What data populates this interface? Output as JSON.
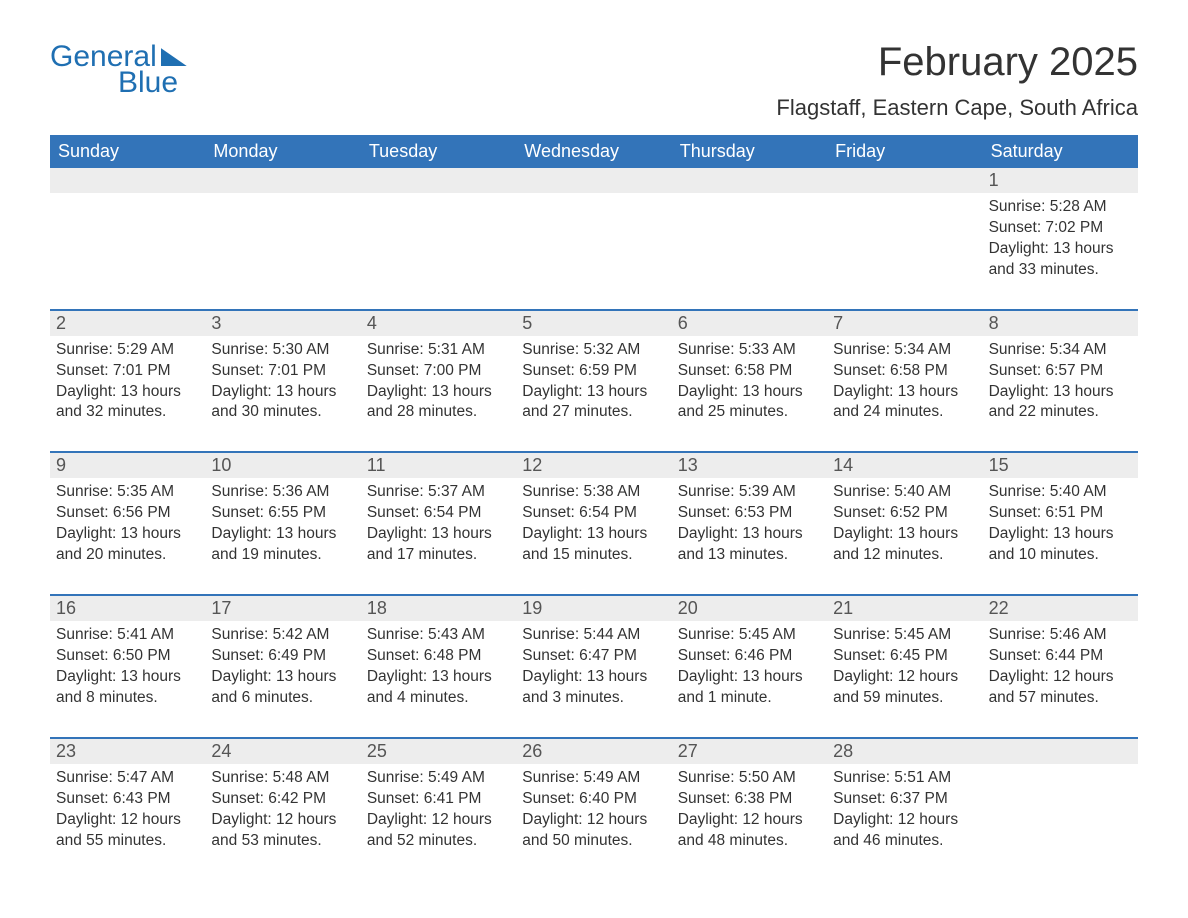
{
  "brand": {
    "word1": "General",
    "word2": "Blue"
  },
  "title": "February 2025",
  "location": "Flagstaff, Eastern Cape, South Africa",
  "colors": {
    "accent": "#3374b9",
    "logo": "#1f6fb2",
    "daynum_bg": "#ededed",
    "text": "#333333",
    "bg": "#ffffff"
  },
  "weekdays": [
    "Sunday",
    "Monday",
    "Tuesday",
    "Wednesday",
    "Thursday",
    "Friday",
    "Saturday"
  ],
  "weeks": [
    [
      null,
      null,
      null,
      null,
      null,
      null,
      {
        "n": "1",
        "sunrise": "Sunrise: 5:28 AM",
        "sunset": "Sunset: 7:02 PM",
        "day1": "Daylight: 13 hours",
        "day2": "and 33 minutes."
      }
    ],
    [
      {
        "n": "2",
        "sunrise": "Sunrise: 5:29 AM",
        "sunset": "Sunset: 7:01 PM",
        "day1": "Daylight: 13 hours",
        "day2": "and 32 minutes."
      },
      {
        "n": "3",
        "sunrise": "Sunrise: 5:30 AM",
        "sunset": "Sunset: 7:01 PM",
        "day1": "Daylight: 13 hours",
        "day2": "and 30 minutes."
      },
      {
        "n": "4",
        "sunrise": "Sunrise: 5:31 AM",
        "sunset": "Sunset: 7:00 PM",
        "day1": "Daylight: 13 hours",
        "day2": "and 28 minutes."
      },
      {
        "n": "5",
        "sunrise": "Sunrise: 5:32 AM",
        "sunset": "Sunset: 6:59 PM",
        "day1": "Daylight: 13 hours",
        "day2": "and 27 minutes."
      },
      {
        "n": "6",
        "sunrise": "Sunrise: 5:33 AM",
        "sunset": "Sunset: 6:58 PM",
        "day1": "Daylight: 13 hours",
        "day2": "and 25 minutes."
      },
      {
        "n": "7",
        "sunrise": "Sunrise: 5:34 AM",
        "sunset": "Sunset: 6:58 PM",
        "day1": "Daylight: 13 hours",
        "day2": "and 24 minutes."
      },
      {
        "n": "8",
        "sunrise": "Sunrise: 5:34 AM",
        "sunset": "Sunset: 6:57 PM",
        "day1": "Daylight: 13 hours",
        "day2": "and 22 minutes."
      }
    ],
    [
      {
        "n": "9",
        "sunrise": "Sunrise: 5:35 AM",
        "sunset": "Sunset: 6:56 PM",
        "day1": "Daylight: 13 hours",
        "day2": "and 20 minutes."
      },
      {
        "n": "10",
        "sunrise": "Sunrise: 5:36 AM",
        "sunset": "Sunset: 6:55 PM",
        "day1": "Daylight: 13 hours",
        "day2": "and 19 minutes."
      },
      {
        "n": "11",
        "sunrise": "Sunrise: 5:37 AM",
        "sunset": "Sunset: 6:54 PM",
        "day1": "Daylight: 13 hours",
        "day2": "and 17 minutes."
      },
      {
        "n": "12",
        "sunrise": "Sunrise: 5:38 AM",
        "sunset": "Sunset: 6:54 PM",
        "day1": "Daylight: 13 hours",
        "day2": "and 15 minutes."
      },
      {
        "n": "13",
        "sunrise": "Sunrise: 5:39 AM",
        "sunset": "Sunset: 6:53 PM",
        "day1": "Daylight: 13 hours",
        "day2": "and 13 minutes."
      },
      {
        "n": "14",
        "sunrise": "Sunrise: 5:40 AM",
        "sunset": "Sunset: 6:52 PM",
        "day1": "Daylight: 13 hours",
        "day2": "and 12 minutes."
      },
      {
        "n": "15",
        "sunrise": "Sunrise: 5:40 AM",
        "sunset": "Sunset: 6:51 PM",
        "day1": "Daylight: 13 hours",
        "day2": "and 10 minutes."
      }
    ],
    [
      {
        "n": "16",
        "sunrise": "Sunrise: 5:41 AM",
        "sunset": "Sunset: 6:50 PM",
        "day1": "Daylight: 13 hours",
        "day2": "and 8 minutes."
      },
      {
        "n": "17",
        "sunrise": "Sunrise: 5:42 AM",
        "sunset": "Sunset: 6:49 PM",
        "day1": "Daylight: 13 hours",
        "day2": "and 6 minutes."
      },
      {
        "n": "18",
        "sunrise": "Sunrise: 5:43 AM",
        "sunset": "Sunset: 6:48 PM",
        "day1": "Daylight: 13 hours",
        "day2": "and 4 minutes."
      },
      {
        "n": "19",
        "sunrise": "Sunrise: 5:44 AM",
        "sunset": "Sunset: 6:47 PM",
        "day1": "Daylight: 13 hours",
        "day2": "and 3 minutes."
      },
      {
        "n": "20",
        "sunrise": "Sunrise: 5:45 AM",
        "sunset": "Sunset: 6:46 PM",
        "day1": "Daylight: 13 hours",
        "day2": "and 1 minute."
      },
      {
        "n": "21",
        "sunrise": "Sunrise: 5:45 AM",
        "sunset": "Sunset: 6:45 PM",
        "day1": "Daylight: 12 hours",
        "day2": "and 59 minutes."
      },
      {
        "n": "22",
        "sunrise": "Sunrise: 5:46 AM",
        "sunset": "Sunset: 6:44 PM",
        "day1": "Daylight: 12 hours",
        "day2": "and 57 minutes."
      }
    ],
    [
      {
        "n": "23",
        "sunrise": "Sunrise: 5:47 AM",
        "sunset": "Sunset: 6:43 PM",
        "day1": "Daylight: 12 hours",
        "day2": "and 55 minutes."
      },
      {
        "n": "24",
        "sunrise": "Sunrise: 5:48 AM",
        "sunset": "Sunset: 6:42 PM",
        "day1": "Daylight: 12 hours",
        "day2": "and 53 minutes."
      },
      {
        "n": "25",
        "sunrise": "Sunrise: 5:49 AM",
        "sunset": "Sunset: 6:41 PM",
        "day1": "Daylight: 12 hours",
        "day2": "and 52 minutes."
      },
      {
        "n": "26",
        "sunrise": "Sunrise: 5:49 AM",
        "sunset": "Sunset: 6:40 PM",
        "day1": "Daylight: 12 hours",
        "day2": "and 50 minutes."
      },
      {
        "n": "27",
        "sunrise": "Sunrise: 5:50 AM",
        "sunset": "Sunset: 6:38 PM",
        "day1": "Daylight: 12 hours",
        "day2": "and 48 minutes."
      },
      {
        "n": "28",
        "sunrise": "Sunrise: 5:51 AM",
        "sunset": "Sunset: 6:37 PM",
        "day1": "Daylight: 12 hours",
        "day2": "and 46 minutes."
      },
      null
    ]
  ]
}
